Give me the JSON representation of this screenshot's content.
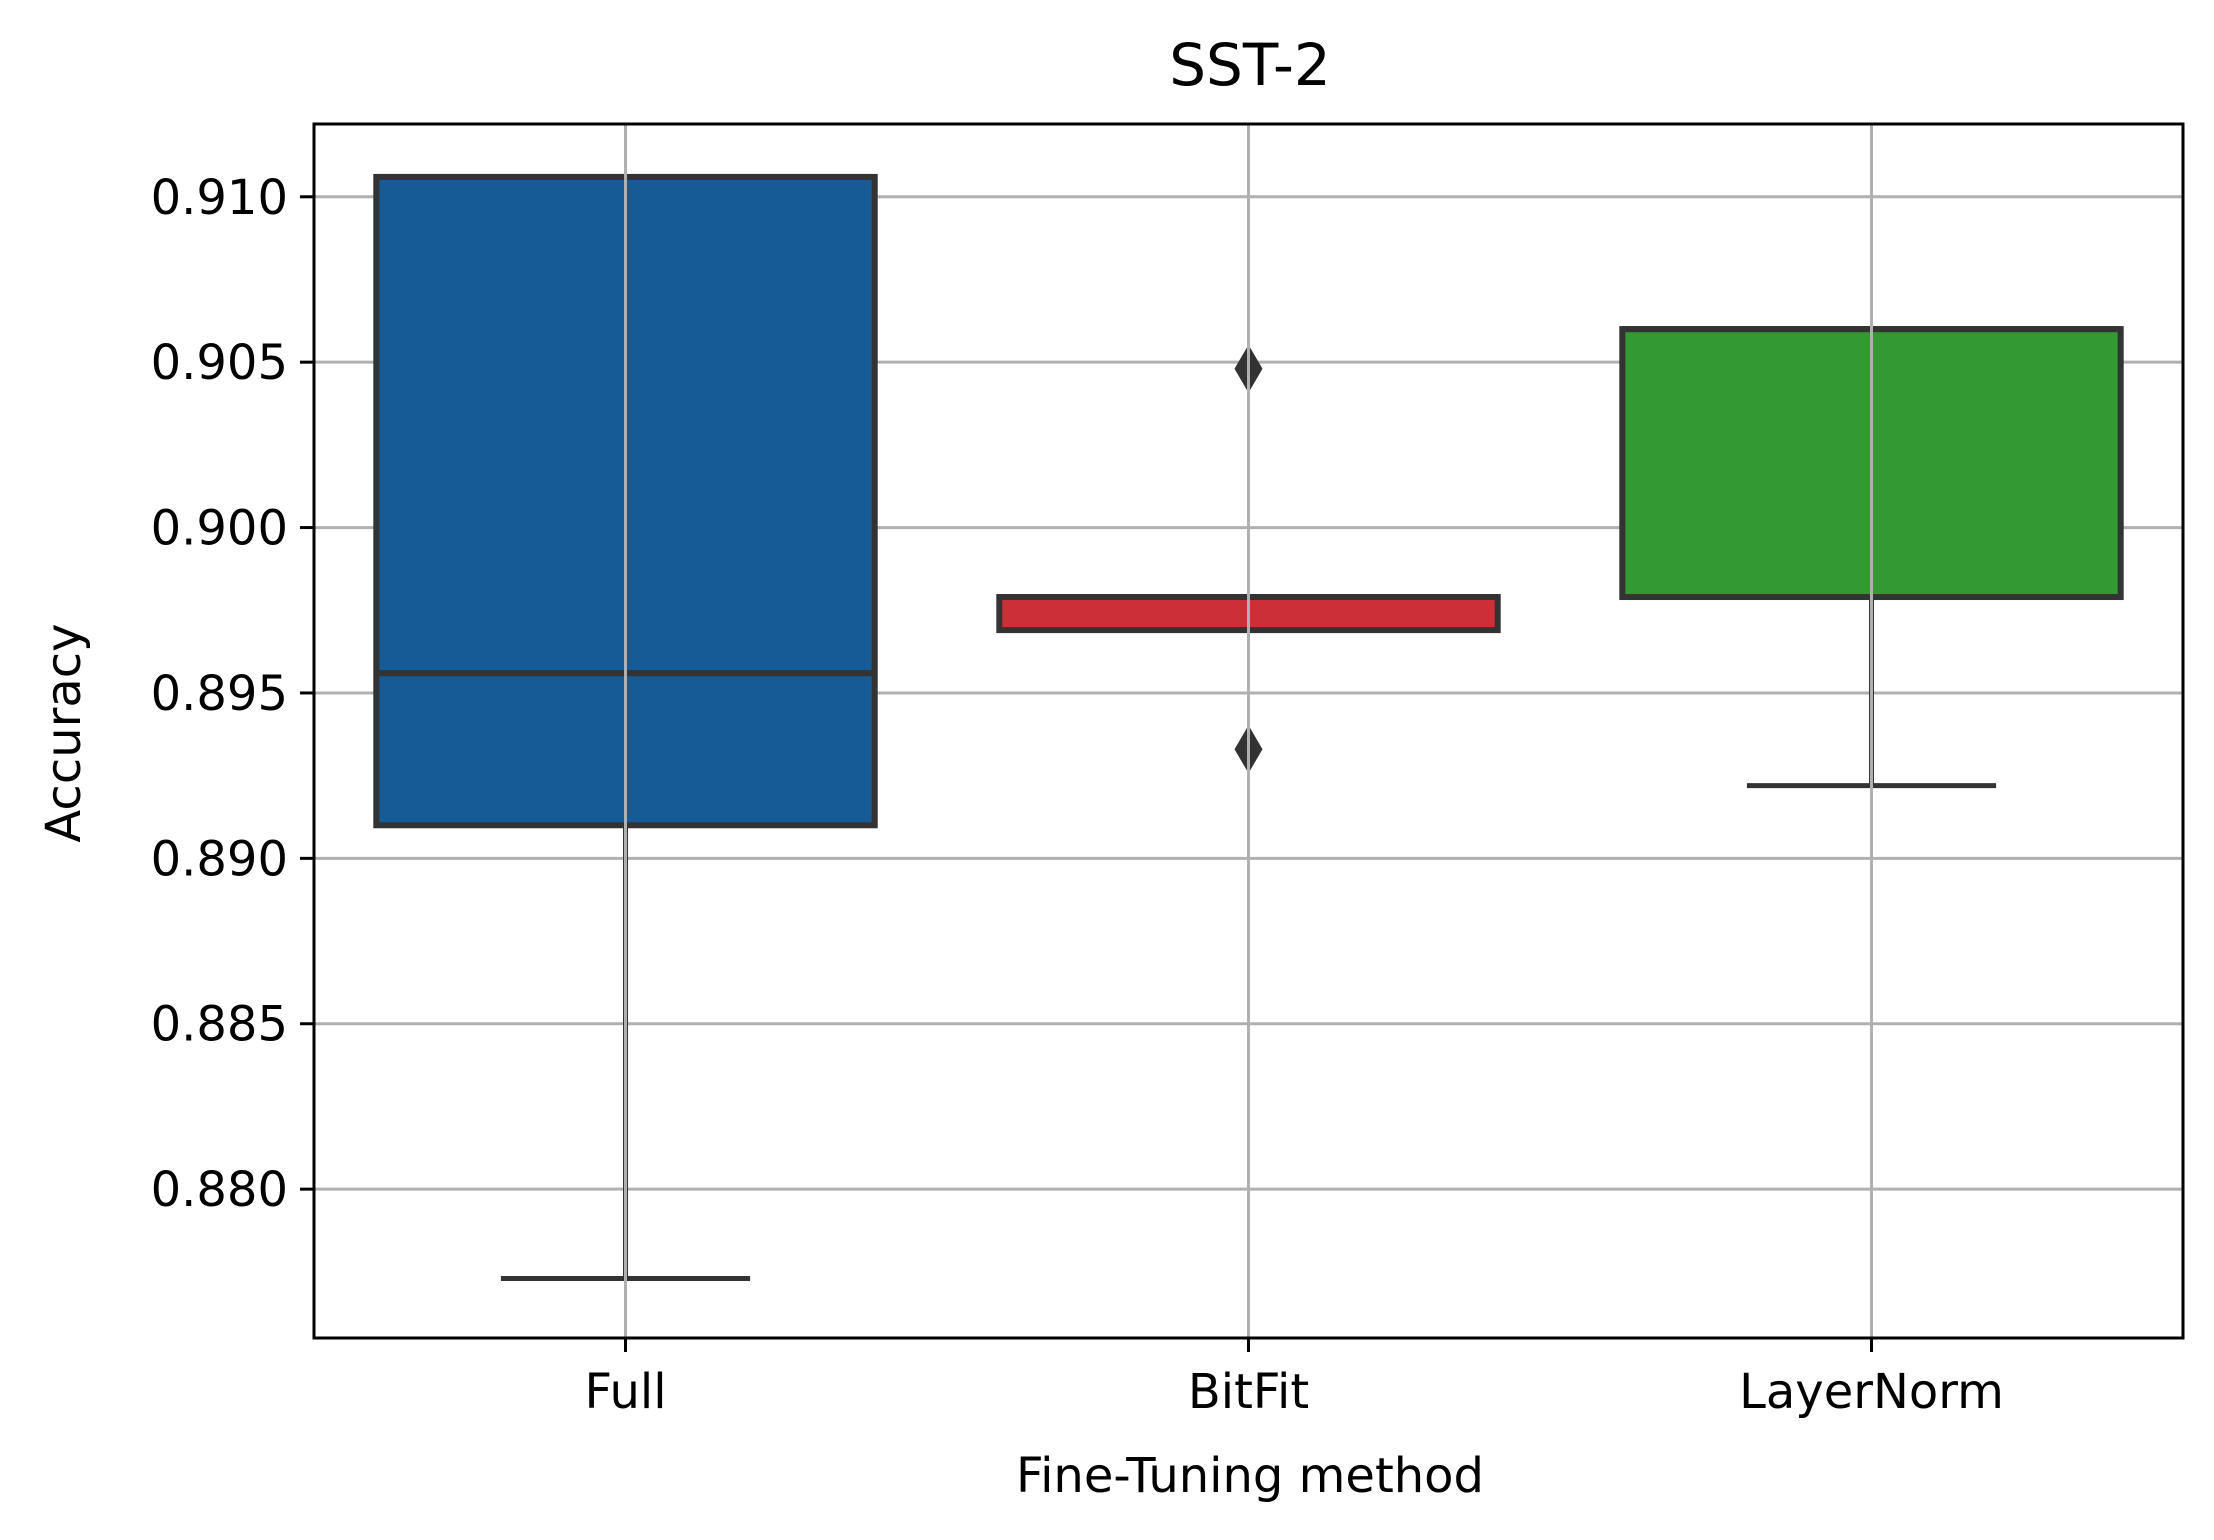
{
  "chart_data": {
    "type": "box",
    "title": "SST-2",
    "xlabel": "Fine-Tuning method",
    "ylabel": "Accuracy",
    "ylim": [
      0.8755,
      0.9122
    ],
    "yticks": [
      0.88,
      0.885,
      0.89,
      0.895,
      0.9,
      0.905,
      0.91
    ],
    "ytick_labels": [
      "0.880",
      "0.885",
      "0.890",
      "0.895",
      "0.900",
      "0.905",
      "0.910"
    ],
    "grid": true,
    "categories": [
      "Full",
      "BitFit",
      "LayerNorm"
    ],
    "boxes": [
      {
        "category": "Full",
        "color": "#165A96",
        "whisker_low": 0.8773,
        "q1": 0.891,
        "median": 0.8956,
        "q3": 0.9106,
        "whisker_high": 0.9106,
        "outliers": []
      },
      {
        "category": "BitFit",
        "color": "#CC2F36",
        "whisker_low": 0.8969,
        "q1": 0.8969,
        "median": 0.8979,
        "q3": 0.8979,
        "whisker_high": 0.8979,
        "outliers": [
          0.8933,
          0.9048
        ]
      },
      {
        "category": "LayerNorm",
        "color": "#339933",
        "whisker_low": 0.8922,
        "q1": 0.8979,
        "median": 0.906,
        "q3": 0.906,
        "whisker_high": 0.906,
        "outliers": []
      }
    ],
    "line_color": "#333333",
    "grid_color": "#b0b0b0"
  }
}
